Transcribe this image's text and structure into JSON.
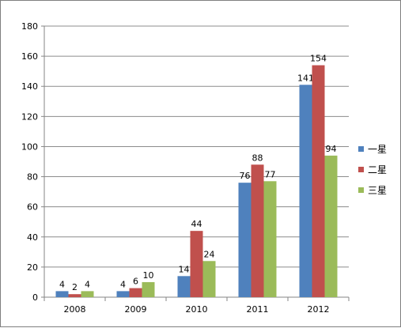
{
  "chart_data": {
    "type": "bar",
    "categories": [
      "2008",
      "2009",
      "2010",
      "2011",
      "2012"
    ],
    "series": [
      {
        "name": "一星",
        "values": [
          4,
          4,
          14,
          76,
          141
        ],
        "color": "#4f81bd"
      },
      {
        "name": "二星",
        "values": [
          2,
          6,
          44,
          88,
          154
        ],
        "color": "#c0504d"
      },
      {
        "name": "三星",
        "values": [
          4,
          10,
          24,
          77,
          94
        ],
        "color": "#9bbb59"
      }
    ],
    "ylim": [
      0,
      180
    ],
    "yticks": [
      0,
      20,
      40,
      60,
      80,
      100,
      120,
      140,
      160,
      180
    ],
    "grid": true,
    "legend_position": "right"
  }
}
